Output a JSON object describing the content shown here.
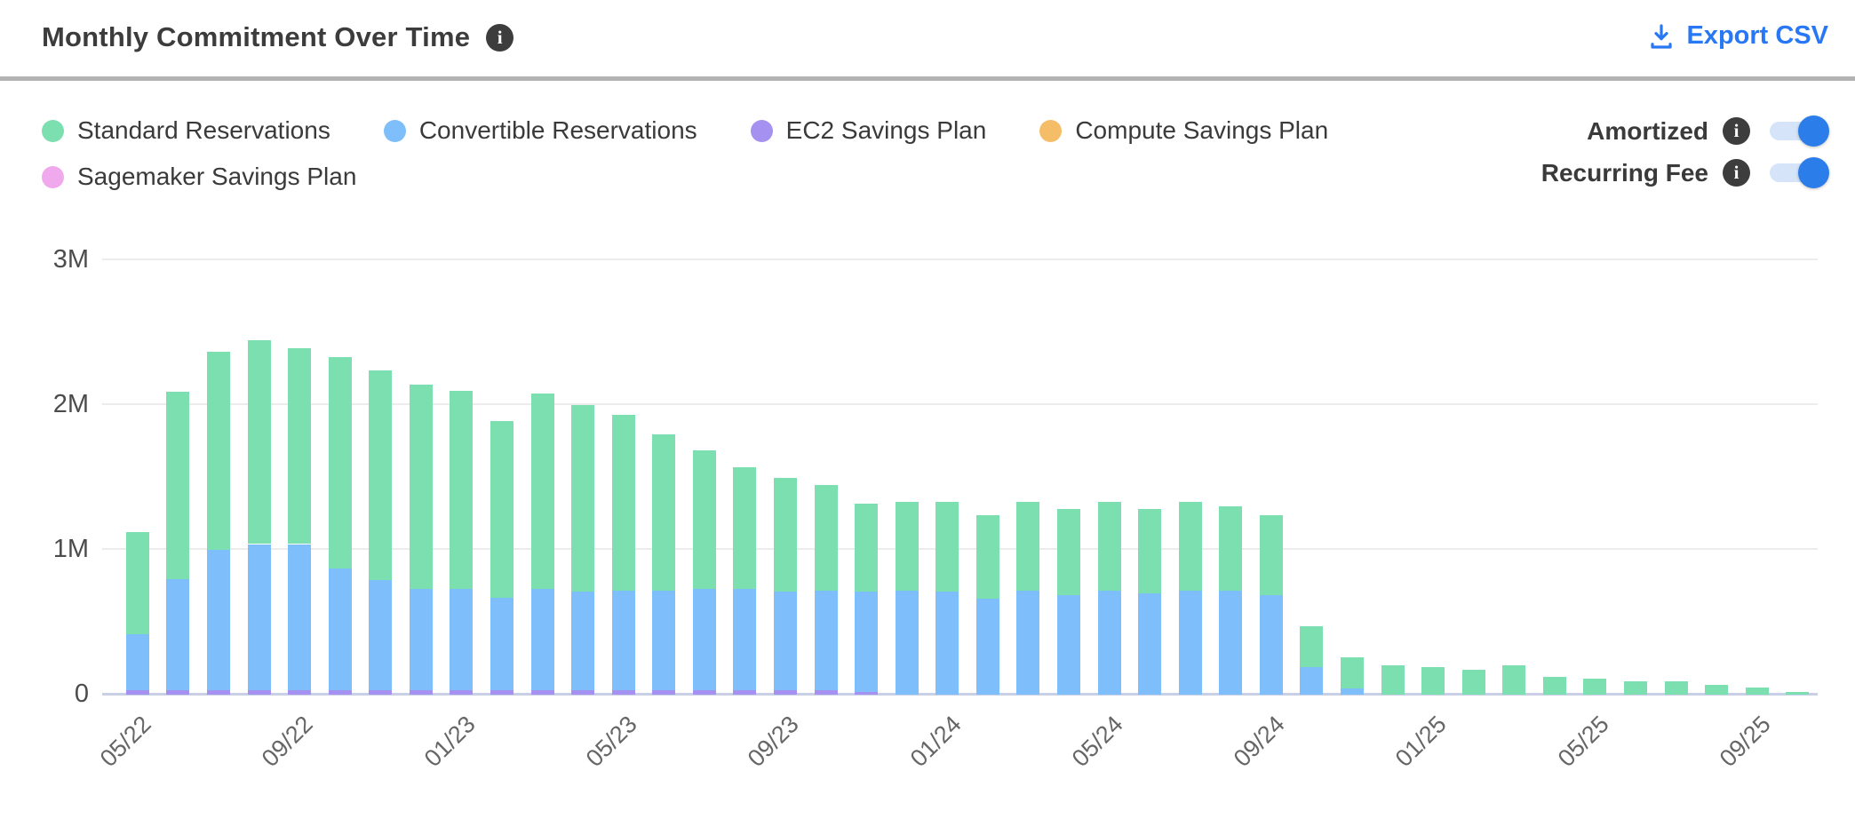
{
  "header": {
    "title": "Monthly Commitment Over Time",
    "export_label": "Export CSV"
  },
  "legend": [
    {
      "label": "Standard Reservations",
      "color": "#7cdfaf"
    },
    {
      "label": "Convertible Reservations",
      "color": "#7dbefb"
    },
    {
      "label": "EC2 Savings Plan",
      "color": "#a591f0"
    },
    {
      "label": "Compute Savings Plan",
      "color": "#f6bd68"
    },
    {
      "label": "Sagemaker Savings Plan",
      "color": "#f0a9ec"
    }
  ],
  "toggles": [
    {
      "label": "Amortized",
      "state": "on"
    },
    {
      "label": "Recurring Fee",
      "state": "on"
    }
  ],
  "colors": {
    "accent_blue": "#2878f5",
    "toggle_knob": "#2b7de9",
    "toggle_track": "#d5e4f9",
    "axis_line": "#c8cfe6",
    "gridline": "#ececec",
    "info_badge": "#3d3d3d"
  },
  "chart_data": {
    "type": "bar",
    "stacked": true,
    "unit": "millions",
    "ylim": [
      0,
      3
    ],
    "yticks": [
      "0",
      "1M",
      "2M",
      "3M"
    ],
    "tick_every": 4,
    "categories": [
      "05/22",
      "06/22",
      "07/22",
      "08/22",
      "09/22",
      "10/22",
      "11/22",
      "12/22",
      "01/23",
      "02/23",
      "03/23",
      "04/23",
      "05/23",
      "06/23",
      "07/23",
      "08/23",
      "09/23",
      "10/23",
      "11/23",
      "12/23",
      "01/24",
      "02/24",
      "03/24",
      "04/24",
      "05/24",
      "06/24",
      "07/24",
      "08/24",
      "09/24",
      "10/24",
      "11/24",
      "12/24",
      "01/25",
      "02/25",
      "03/25",
      "04/25",
      "05/25",
      "06/25",
      "07/25",
      "08/25",
      "09/25",
      "10/25"
    ],
    "x_tick_labels": [
      "05/22",
      "09/22",
      "01/23",
      "05/23",
      "09/23",
      "01/24",
      "05/24",
      "09/24",
      "01/25",
      "05/25",
      "09/25"
    ],
    "series": [
      {
        "name": "Standard Reservations",
        "color": "#7cdfaf",
        "values": [
          0.7,
          1.29,
          1.37,
          1.41,
          1.35,
          1.46,
          1.45,
          1.41,
          1.37,
          1.22,
          1.35,
          1.29,
          1.21,
          1.08,
          0.96,
          0.84,
          0.79,
          0.73,
          0.61,
          0.61,
          0.62,
          0.58,
          0.61,
          0.59,
          0.61,
          0.58,
          0.61,
          0.58,
          0.55,
          0.28,
          0.22,
          0.2,
          0.19,
          0.17,
          0.2,
          0.12,
          0.11,
          0.09,
          0.09,
          0.07,
          0.05,
          0.02
        ]
      },
      {
        "name": "Convertible Reservations",
        "color": "#7dbefb",
        "values": [
          0.39,
          0.77,
          0.97,
          1.01,
          1.01,
          0.84,
          0.76,
          0.7,
          0.7,
          0.64,
          0.7,
          0.68,
          0.69,
          0.69,
          0.7,
          0.7,
          0.68,
          0.69,
          0.69,
          0.72,
          0.71,
          0.66,
          0.72,
          0.69,
          0.72,
          0.7,
          0.72,
          0.72,
          0.69,
          0.19,
          0.04,
          0,
          0,
          0,
          0,
          0,
          0,
          0,
          0,
          0,
          0,
          0
        ]
      },
      {
        "name": "EC2 Savings Plan",
        "color": "#a591f0",
        "values": [
          0.03,
          0.03,
          0.03,
          0.03,
          0.03,
          0.03,
          0.03,
          0.03,
          0.03,
          0.03,
          0.03,
          0.03,
          0.03,
          0.03,
          0.03,
          0.03,
          0.03,
          0.03,
          0.02,
          0,
          0,
          0,
          0,
          0,
          0,
          0,
          0,
          0,
          0,
          0,
          0,
          0,
          0,
          0,
          0,
          0,
          0,
          0,
          0,
          0,
          0,
          0
        ]
      },
      {
        "name": "Compute Savings Plan",
        "color": "#f6bd68",
        "values": [
          0,
          0,
          0,
          0,
          0,
          0,
          0,
          0,
          0,
          0,
          0,
          0,
          0,
          0,
          0,
          0,
          0,
          0,
          0,
          0,
          0,
          0,
          0,
          0,
          0,
          0,
          0,
          0,
          0,
          0,
          0,
          0,
          0,
          0,
          0,
          0,
          0,
          0,
          0,
          0,
          0,
          0
        ]
      },
      {
        "name": "Sagemaker Savings Plan",
        "color": "#f0a9ec",
        "values": [
          0,
          0,
          0,
          0,
          0,
          0,
          0,
          0,
          0,
          0,
          0,
          0,
          0,
          0,
          0,
          0,
          0,
          0,
          0,
          0,
          0,
          0,
          0,
          0,
          0,
          0,
          0,
          0,
          0,
          0,
          0,
          0,
          0,
          0,
          0,
          0,
          0,
          0,
          0,
          0,
          0,
          0
        ]
      }
    ]
  }
}
